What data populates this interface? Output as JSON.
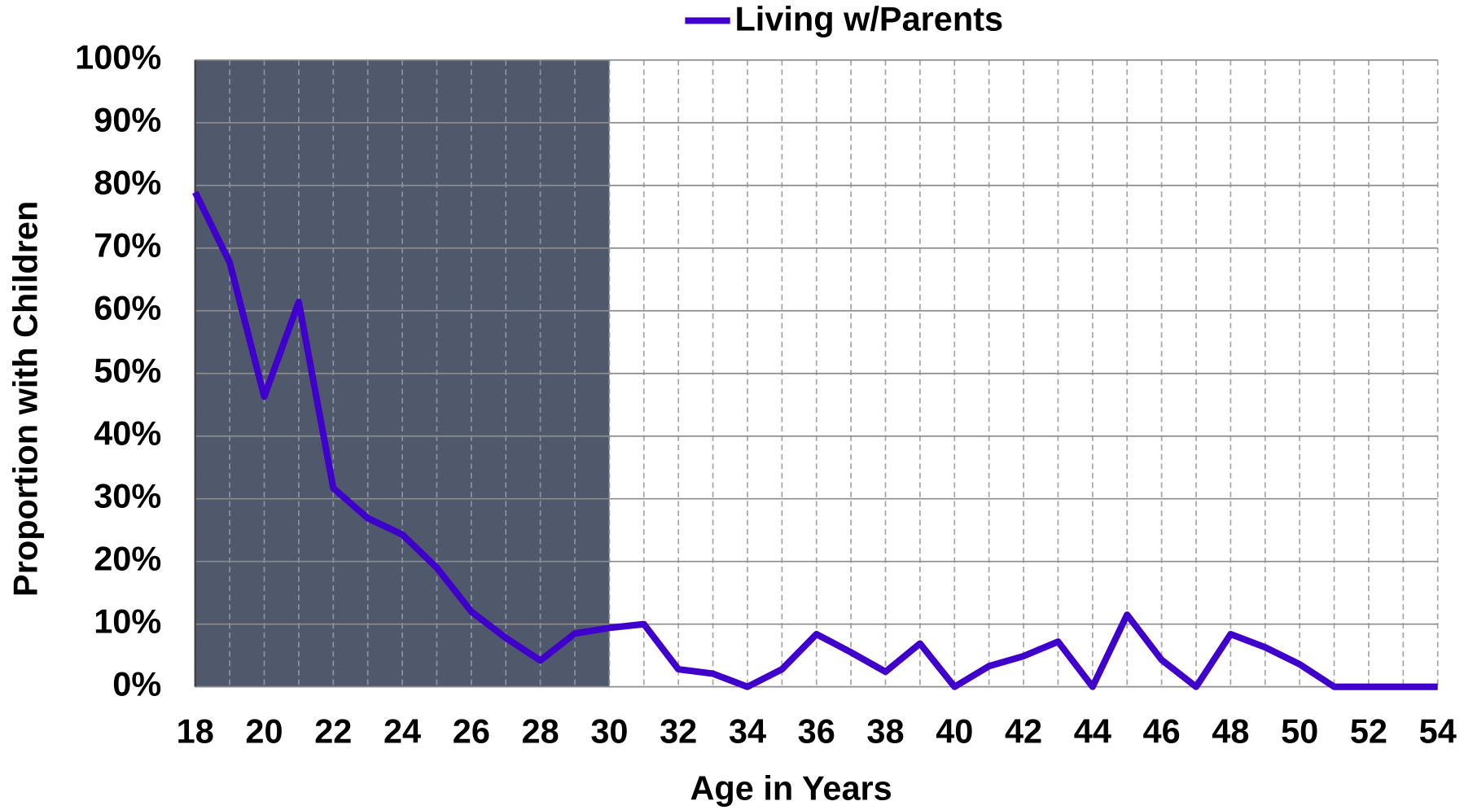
{
  "chart_data": {
    "type": "line",
    "legend_position": "top",
    "xlabel": "Age in Years",
    "ylabel": "Proportion with Children",
    "x": [
      18,
      19,
      20,
      21,
      22,
      23,
      24,
      25,
      26,
      27,
      28,
      29,
      30,
      31,
      32,
      33,
      34,
      35,
      36,
      37,
      38,
      39,
      40,
      41,
      42,
      43,
      44,
      45,
      46,
      47,
      48,
      49,
      50,
      51,
      52,
      53,
      54
    ],
    "series": [
      {
        "name": "Living w/Parents",
        "color": "#3f00cc",
        "values": [
          78.9,
          67.7,
          46.3,
          61.4,
          31.7,
          26.9,
          24.3,
          19.0,
          12.0,
          7.8,
          4.2,
          8.5,
          9.4,
          10.0,
          2.8,
          2.1,
          0,
          2.8,
          8.4,
          5.5,
          2.4,
          6.9,
          0,
          3.3,
          4.9,
          7.2,
          0,
          11.5,
          4.3,
          0,
          8.4,
          6.3,
          3.6,
          0,
          0,
          0,
          0
        ]
      }
    ],
    "xlim": [
      18,
      54
    ],
    "xticks": [
      18,
      20,
      22,
      24,
      26,
      28,
      30,
      32,
      34,
      36,
      38,
      40,
      42,
      44,
      46,
      48,
      50,
      52,
      54
    ],
    "ylim": [
      0,
      100
    ],
    "yticks": [
      {
        "value": 0,
        "label": "0%"
      },
      {
        "value": 10,
        "label": "10%"
      },
      {
        "value": 20,
        "label": "20%"
      },
      {
        "value": 30,
        "label": "30%"
      },
      {
        "value": 40,
        "label": "40%"
      },
      {
        "value": 50,
        "label": "50%"
      },
      {
        "value": 60,
        "label": "60%"
      },
      {
        "value": 70,
        "label": "70%"
      },
      {
        "value": 80,
        "label": "80%"
      },
      {
        "value": 90,
        "label": "90%"
      },
      {
        "value": 100,
        "label": "100%"
      }
    ],
    "shaded_x": [
      18,
      30
    ],
    "shade_color": "#4f596b",
    "grid": true
  }
}
